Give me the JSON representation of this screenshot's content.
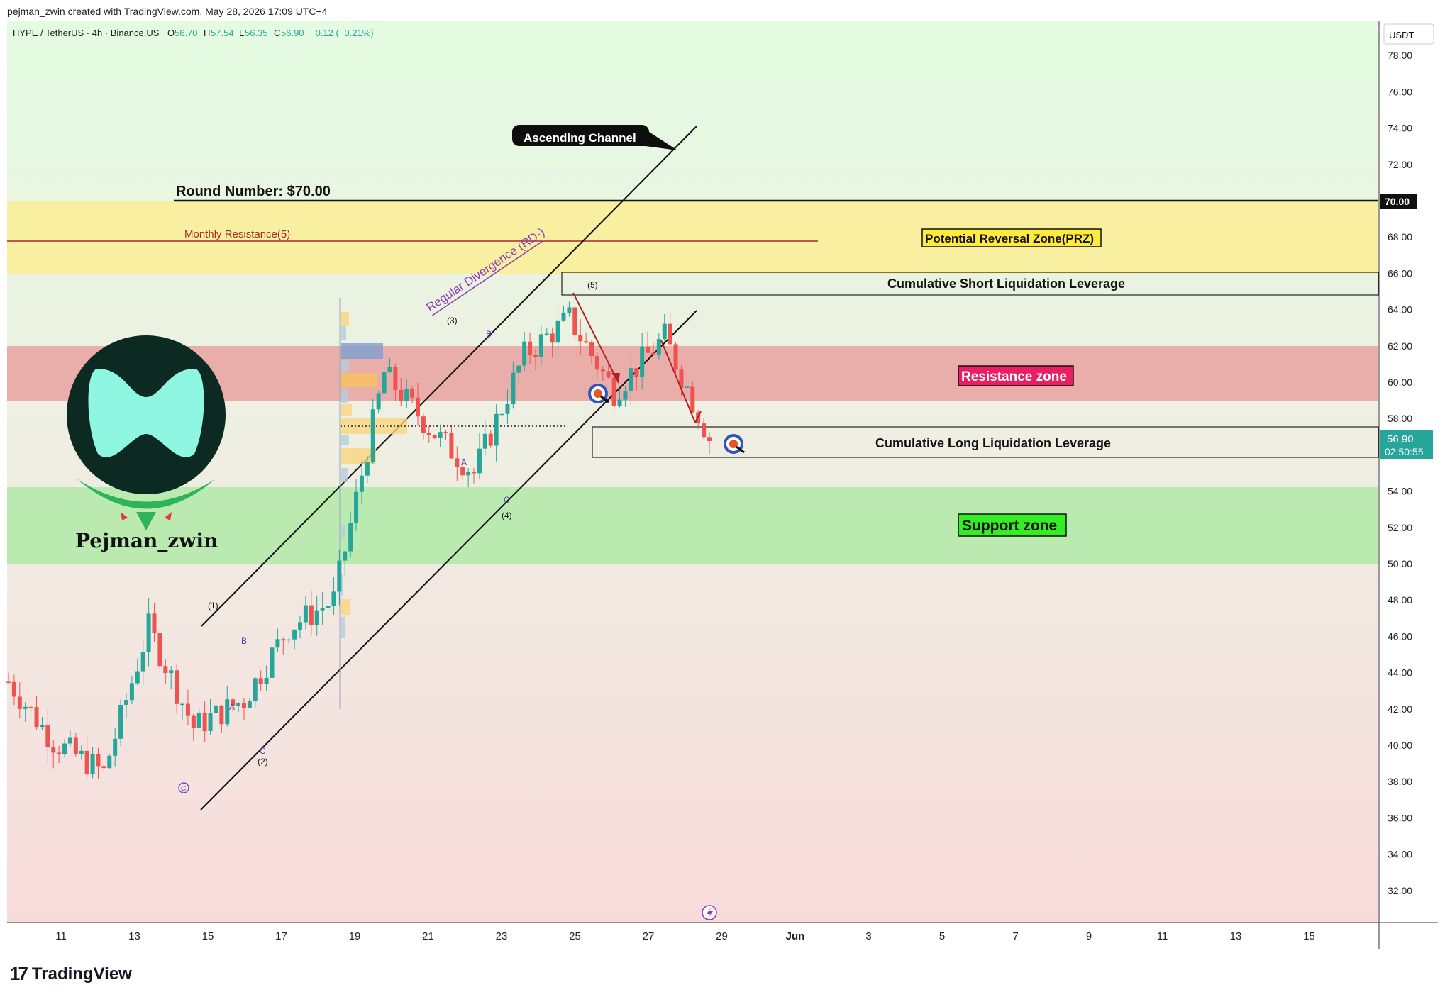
{
  "header": {
    "created_by": "pejman_zwin created with TradingView.com, May 28, 2026 17:09 UTC+4"
  },
  "legend": {
    "symbol": "HYPE / TetherUS · 4h · Binance.US",
    "o_label": "O",
    "o_value": "56.70",
    "h_label": "H",
    "h_value": "57.54",
    "l_label": "L",
    "l_value": "56.35",
    "c_label": "C",
    "c_value": "56.90",
    "change": "−0.12 (−0.21%)"
  },
  "axis": {
    "currency": "USDT",
    "price_ticks": [
      "78.00",
      "76.00",
      "74.00",
      "72.00",
      "70.00",
      "68.00",
      "66.00",
      "64.00",
      "62.00",
      "60.00",
      "58.00",
      "56.00",
      "54.00",
      "52.00",
      "50.00",
      "48.00",
      "46.00",
      "44.00",
      "42.00",
      "40.00",
      "38.00",
      "36.00",
      "34.00",
      "32.00"
    ],
    "date_ticks": [
      "11",
      "13",
      "15",
      "17",
      "19",
      "21",
      "23",
      "25",
      "27",
      "29",
      "Jun",
      "3",
      "5",
      "7",
      "9",
      "11",
      "13",
      "15"
    ],
    "highlight_price": "70.00",
    "last_price": "56.90",
    "countdown": "02:50:55"
  },
  "annotations": {
    "ascending_channel": "Ascending Channel",
    "round_number": "Round Number: $70.00",
    "monthly_resistance": "Monthly Resistance(5)",
    "prz": "Potential Reversal Zone(PRZ)",
    "short_liq": "Cumulative Short Liquidation Leverage",
    "long_liq": "Cumulative Long Liquidation Leverage",
    "resistance_zone": "Resistance zone",
    "support_zone": "Support zone",
    "regular_divergence": "Regular Divergence (RD-)",
    "wave_labels": [
      "(1)",
      "(2)",
      "(3)",
      "(4)",
      "(5)",
      "A",
      "B",
      "C",
      "A",
      "B",
      "C"
    ],
    "wave_c_circle": "C"
  },
  "logo": {
    "name": "Pejman_zwin"
  },
  "brand": {
    "name": "TradingView"
  },
  "colors": {
    "bull": "#26a69a",
    "bear": "#ef5350",
    "resistance_zone": "#e8a9a4",
    "support_zone": "#b9ebaf",
    "prz_zone": "#f8f0a0",
    "label_resistance_bg": "#e91e63",
    "label_support_bg": "#33ee22",
    "label_prz_bg": "#ffeb3b"
  },
  "chart_data": {
    "type": "candlestick",
    "symbol": "HYPE / TetherUS",
    "timeframe": "4h",
    "x_axis": "date (May–June 2026)",
    "ylim": [
      30,
      80
    ],
    "zones": [
      {
        "name": "Potential Reversal Zone(PRZ)",
        "from": 66.0,
        "to": 70.0
      },
      {
        "name": "Resistance zone",
        "from": 59.0,
        "to": 62.0
      },
      {
        "name": "Support zone",
        "from": 49.8,
        "to": 54.1
      },
      {
        "name": "Cumulative Short Liquidation Leverage",
        "from": 64.9,
        "to": 66.2
      },
      {
        "name": "Cumulative Long Liquidation Leverage",
        "from": 55.6,
        "to": 57.3
      }
    ],
    "levels": [
      {
        "name": "Round Number",
        "value": 70.0
      },
      {
        "name": "Monthly Resistance(5)",
        "value": 67.8
      }
    ],
    "trend_points_approx": [
      {
        "date": "May 10",
        "price": 43.5
      },
      {
        "date": "May 13",
        "price": 40.2
      },
      {
        "date": "May 14",
        "price": 38.5
      },
      {
        "date": "May 15",
        "price": 46.5
      },
      {
        "date": "May 16",
        "price": 41.0
      },
      {
        "date": "May 17",
        "price": 42.5
      },
      {
        "date": "May 18",
        "price": 46.5
      },
      {
        "date": "May 20",
        "price": 48.0
      },
      {
        "date": "May 21",
        "price": 60.5
      },
      {
        "date": "May 22",
        "price": 57.5
      },
      {
        "date": "May 23",
        "price": 55.0
      },
      {
        "date": "May 24",
        "price": 61.5
      },
      {
        "date": "May 25",
        "price": 63.5
      },
      {
        "date": "May 26",
        "price": 59.5
      },
      {
        "date": "May 27",
        "price": 62.5
      },
      {
        "date": "May 28",
        "price": 56.9
      }
    ],
    "last_close": 56.9
  }
}
